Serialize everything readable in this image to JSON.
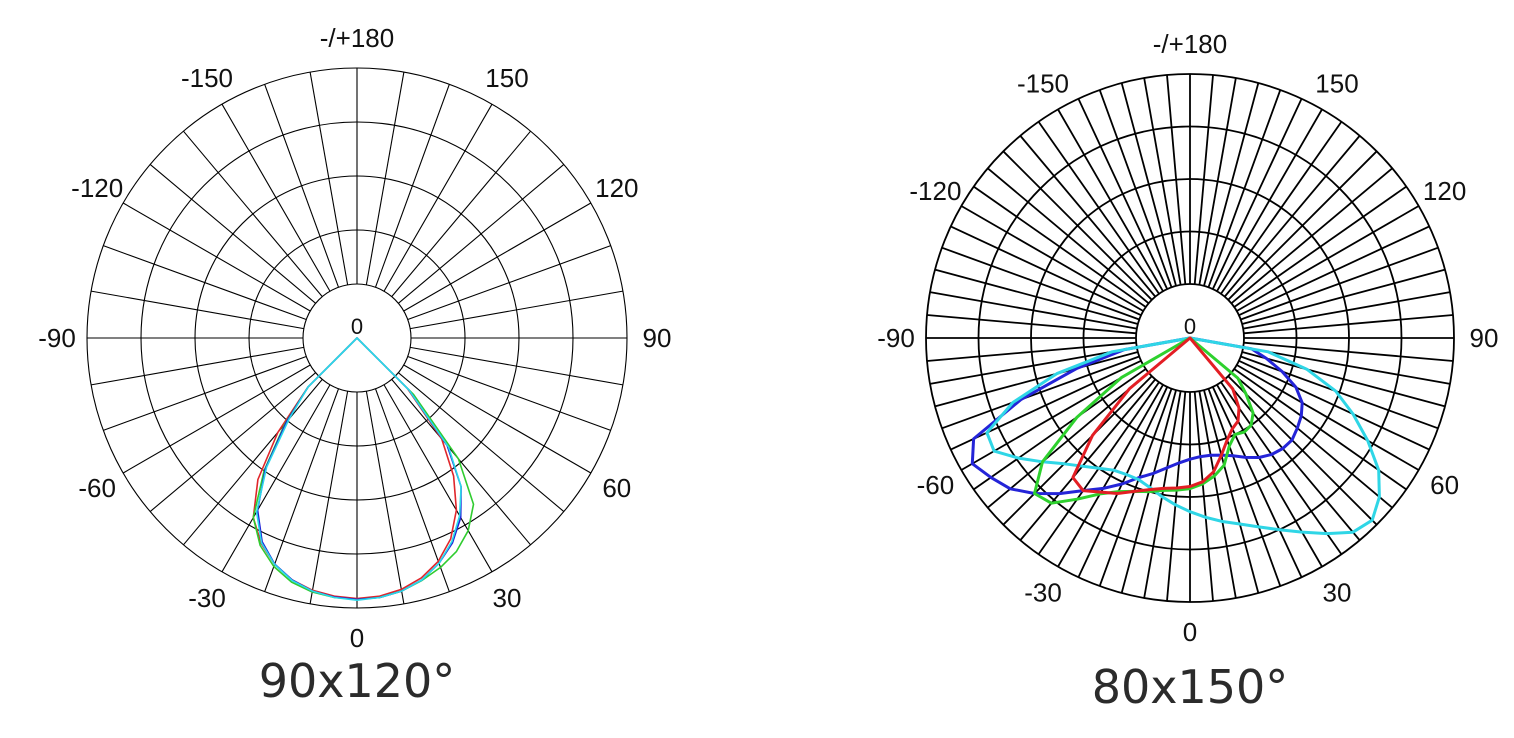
{
  "chart_data": [
    {
      "type": "polar",
      "title": "90x120°",
      "angle_labels": [
        {
          "angle": 180,
          "text": "-/+180"
        },
        {
          "angle": -150,
          "text": "-150"
        },
        {
          "angle": 150,
          "text": "150"
        },
        {
          "angle": -120,
          "text": "-120"
        },
        {
          "angle": 120,
          "text": "120"
        },
        {
          "angle": -90,
          "text": "-90"
        },
        {
          "angle": 90,
          "text": "90"
        },
        {
          "angle": -60,
          "text": "-60"
        },
        {
          "angle": 60,
          "text": "60"
        },
        {
          "angle": -30,
          "text": "-30"
        },
        {
          "angle": 30,
          "text": "30"
        },
        {
          "angle": 0,
          "text": "0"
        }
      ],
      "center_label": "0",
      "rings": 5,
      "spoke_step_deg": 10,
      "r_max": 5,
      "grid": true,
      "series": [
        {
          "color": "#e0262b",
          "line_weight": "thin",
          "points": [
            [
              -45,
              0.35
            ],
            [
              -40,
              1.6
            ],
            [
              -35,
              2.75
            ],
            [
              -30,
              3.55
            ],
            [
              -25,
              4.0
            ],
            [
              -20,
              4.33
            ],
            [
              -15,
              4.55
            ],
            [
              -10,
              4.68
            ],
            [
              -5,
              4.75
            ],
            [
              0,
              4.78
            ],
            [
              5,
              4.75
            ],
            [
              10,
              4.66
            ],
            [
              15,
              4.5
            ],
            [
              20,
              4.25
            ],
            [
              25,
              3.88
            ],
            [
              30,
              3.35
            ],
            [
              35,
              2.65
            ],
            [
              40,
              1.8
            ],
            [
              45,
              0.4
            ]
          ]
        },
        {
          "color": "#2fcc2f",
          "line_weight": "thin",
          "points": [
            [
              -45,
              0.35
            ],
            [
              -40,
              1.35
            ],
            [
              -35,
              2.5
            ],
            [
              -30,
              3.55
            ],
            [
              -25,
              4.05
            ],
            [
              -20,
              4.38
            ],
            [
              -15,
              4.6
            ],
            [
              -10,
              4.72
            ],
            [
              -5,
              4.78
            ],
            [
              0,
              4.8
            ],
            [
              5,
              4.78
            ],
            [
              10,
              4.7
            ],
            [
              15,
              4.56
            ],
            [
              20,
              4.4
            ],
            [
              25,
              4.2
            ],
            [
              30,
              3.9
            ],
            [
              35,
              3.45
            ],
            [
              40,
              2.4
            ],
            [
              45,
              0.6
            ]
          ]
        },
        {
          "color": "#1f1fd6",
          "line_weight": "thin",
          "points": [
            [
              -45,
              0.35
            ],
            [
              -40,
              1.3
            ],
            [
              -35,
              2.45
            ],
            [
              -30,
              3.35
            ],
            [
              -25,
              3.95
            ],
            [
              -20,
              4.32
            ],
            [
              -15,
              4.55
            ],
            [
              -10,
              4.7
            ],
            [
              -5,
              4.77
            ],
            [
              0,
              4.8
            ],
            [
              5,
              4.78
            ],
            [
              10,
              4.7
            ],
            [
              15,
              4.55
            ],
            [
              20,
              4.3
            ],
            [
              25,
              3.98
            ],
            [
              30,
              3.55
            ],
            [
              35,
              2.95
            ],
            [
              40,
              2.0
            ],
            [
              45,
              0.45
            ]
          ]
        },
        {
          "color": "#29d9e8",
          "line_weight": "thin",
          "points": [
            [
              -45,
              0.35
            ],
            [
              -40,
              1.2
            ],
            [
              -35,
              2.4
            ],
            [
              -30,
              3.4
            ],
            [
              -25,
              3.98
            ],
            [
              -20,
              4.33
            ],
            [
              -15,
              4.56
            ],
            [
              -10,
              4.7
            ],
            [
              -5,
              4.78
            ],
            [
              0,
              4.82
            ],
            [
              5,
              4.78
            ],
            [
              10,
              4.7
            ],
            [
              15,
              4.55
            ],
            [
              20,
              4.3
            ],
            [
              25,
              3.95
            ],
            [
              30,
              3.5
            ],
            [
              35,
              2.95
            ],
            [
              40,
              2.05
            ],
            [
              45,
              0.45
            ]
          ]
        }
      ]
    },
    {
      "type": "polar",
      "title": "80x150°",
      "angle_labels": [
        {
          "angle": 180,
          "text": "-/+180"
        },
        {
          "angle": -150,
          "text": "-150"
        },
        {
          "angle": 150,
          "text": "150"
        },
        {
          "angle": -120,
          "text": "-120"
        },
        {
          "angle": 120,
          "text": "120"
        },
        {
          "angle": -90,
          "text": "-90"
        },
        {
          "angle": 90,
          "text": "90"
        },
        {
          "angle": -60,
          "text": "-60"
        },
        {
          "angle": 60,
          "text": "60"
        },
        {
          "angle": -30,
          "text": "-30"
        },
        {
          "angle": 30,
          "text": "30"
        },
        {
          "angle": 0,
          "text": "0"
        }
      ],
      "center_label": "0",
      "rings": 5,
      "spoke_step_deg": 5,
      "r_max": 5,
      "grid": true,
      "series": [
        {
          "color": "#2424d8",
          "line_weight": "thick",
          "points": [
            [
              -80,
              0.3
            ],
            [
              -75,
              1.5
            ],
            [
              -70,
              3.0
            ],
            [
              -65,
              4.4
            ],
            [
              -60,
              4.7
            ],
            [
              -55,
              4.5
            ],
            [
              -50,
              4.3
            ],
            [
              -45,
              3.95
            ],
            [
              -40,
              3.55
            ],
            [
              -35,
              3.15
            ],
            [
              -30,
              2.85
            ],
            [
              -25,
              2.55
            ],
            [
              -20,
              2.25
            ],
            [
              -15,
              2.05
            ],
            [
              -10,
              1.85
            ],
            [
              -5,
              1.7
            ],
            [
              0,
              1.6
            ],
            [
              5,
              1.55
            ],
            [
              10,
              1.55
            ],
            [
              15,
              1.6
            ],
            [
              20,
              1.7
            ],
            [
              25,
              1.85
            ],
            [
              30,
              2.0
            ],
            [
              35,
              2.1
            ],
            [
              40,
              2.15
            ],
            [
              45,
              2.15
            ],
            [
              50,
              2.05
            ],
            [
              55,
              1.95
            ],
            [
              60,
              1.8
            ],
            [
              65,
              1.5
            ],
            [
              70,
              1.05
            ],
            [
              75,
              0.6
            ],
            [
              80,
              0.2
            ]
          ]
        },
        {
          "color": "#2fd6e6",
          "line_weight": "thick",
          "points": [
            [
              -80,
              0.6
            ],
            [
              -75,
              2.0
            ],
            [
              -70,
              3.2
            ],
            [
              -65,
              4.05
            ],
            [
              -60,
              4.1
            ],
            [
              -55,
              3.7
            ],
            [
              -50,
              3.3
            ],
            [
              -45,
              2.95
            ],
            [
              -40,
              2.7
            ],
            [
              -35,
              2.5
            ],
            [
              -30,
              2.35
            ],
            [
              -25,
              2.3
            ],
            [
              -20,
              2.3
            ],
            [
              -15,
              2.4
            ],
            [
              -10,
              2.55
            ],
            [
              -5,
              2.7
            ],
            [
              0,
              2.85
            ],
            [
              5,
              3.0
            ],
            [
              10,
              3.15
            ],
            [
              15,
              3.3
            ],
            [
              20,
              3.5
            ],
            [
              25,
              3.75
            ],
            [
              30,
              4.05
            ],
            [
              35,
              4.4
            ],
            [
              40,
              4.75
            ],
            [
              45,
              4.85
            ],
            [
              50,
              4.6
            ],
            [
              55,
              4.2
            ],
            [
              60,
              3.6
            ],
            [
              65,
              3.0
            ],
            [
              70,
              2.4
            ],
            [
              75,
              1.6
            ],
            [
              80,
              0.6
            ]
          ]
        },
        {
          "color": "#2ed12e",
          "line_weight": "thick",
          "points": [
            [
              -60,
              0.6
            ],
            [
              -55,
              2.0
            ],
            [
              -50,
              3.3
            ],
            [
              -45,
              3.95
            ],
            [
              -40,
              3.85
            ],
            [
              -35,
              3.4
            ],
            [
              -30,
              3.0
            ],
            [
              -25,
              2.75
            ],
            [
              -20,
              2.6
            ],
            [
              -15,
              2.5
            ],
            [
              -10,
              2.4
            ],
            [
              -5,
              2.35
            ],
            [
              0,
              2.3
            ],
            [
              5,
              2.2
            ],
            [
              10,
              2.05
            ],
            [
              15,
              1.85
            ],
            [
              20,
              1.45
            ],
            [
              25,
              1.25
            ],
            [
              30,
              1.3
            ],
            [
              35,
              1.25
            ],
            [
              40,
              1.05
            ],
            [
              45,
              0.6
            ],
            [
              50,
              0.2
            ]
          ]
        },
        {
          "color": "#e31e24",
          "line_weight": "thick",
          "points": [
            [
              -50,
              0.6
            ],
            [
              -45,
              2.0
            ],
            [
              -40,
              3.05
            ],
            [
              -35,
              3.15
            ],
            [
              -30,
              2.95
            ],
            [
              -25,
              2.8
            ],
            [
              -20,
              2.6
            ],
            [
              -15,
              2.45
            ],
            [
              -10,
              2.35
            ],
            [
              -5,
              2.3
            ],
            [
              0,
              2.25
            ],
            [
              5,
              2.15
            ],
            [
              10,
              1.95
            ],
            [
              15,
              1.6
            ],
            [
              20,
              1.3
            ],
            [
              25,
              1.1
            ],
            [
              30,
              1.0
            ],
            [
              35,
              0.75
            ],
            [
              40,
              0.3
            ]
          ]
        }
      ]
    }
  ]
}
